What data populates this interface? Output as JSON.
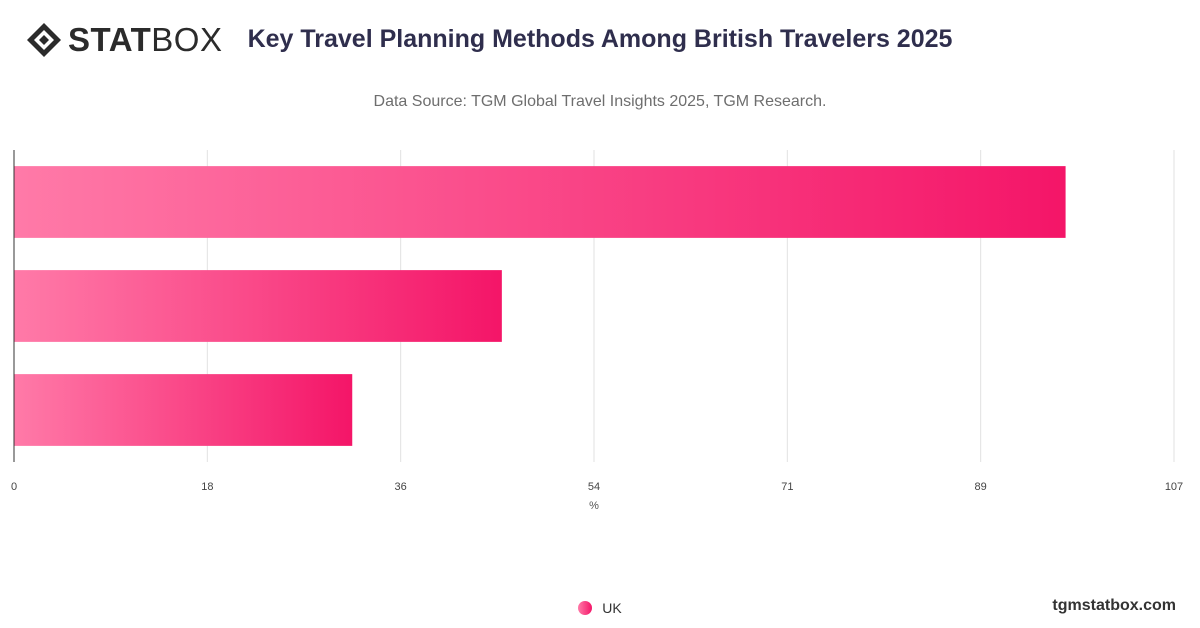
{
  "brand": {
    "logo_bold": "STAT",
    "logo_light": "BOX",
    "site": "tgmstatbox.com"
  },
  "colors": {
    "bar_start": "#ff7aa8",
    "bar_end": "#f41568",
    "grid": "#e2e2e2",
    "axis": "#333333"
  },
  "chart_data": {
    "type": "bar",
    "orientation": "horizontal",
    "title": "Key Travel Planning Methods Among British Travelers 2025",
    "subtitle": "Data Source: TGM Global Travel Insights 2025, TGM Research.",
    "xlabel": "%",
    "ylabel": "",
    "categories": [
      "",
      "",
      ""
    ],
    "series": [
      {
        "name": "UK",
        "values": [
          97,
          45,
          31.2
        ]
      }
    ],
    "xlim": [
      0,
      107
    ],
    "xticks": [
      "0",
      "18",
      "36",
      "54",
      "71",
      "89",
      "107"
    ],
    "grid": true,
    "legend": "bottom-center"
  }
}
